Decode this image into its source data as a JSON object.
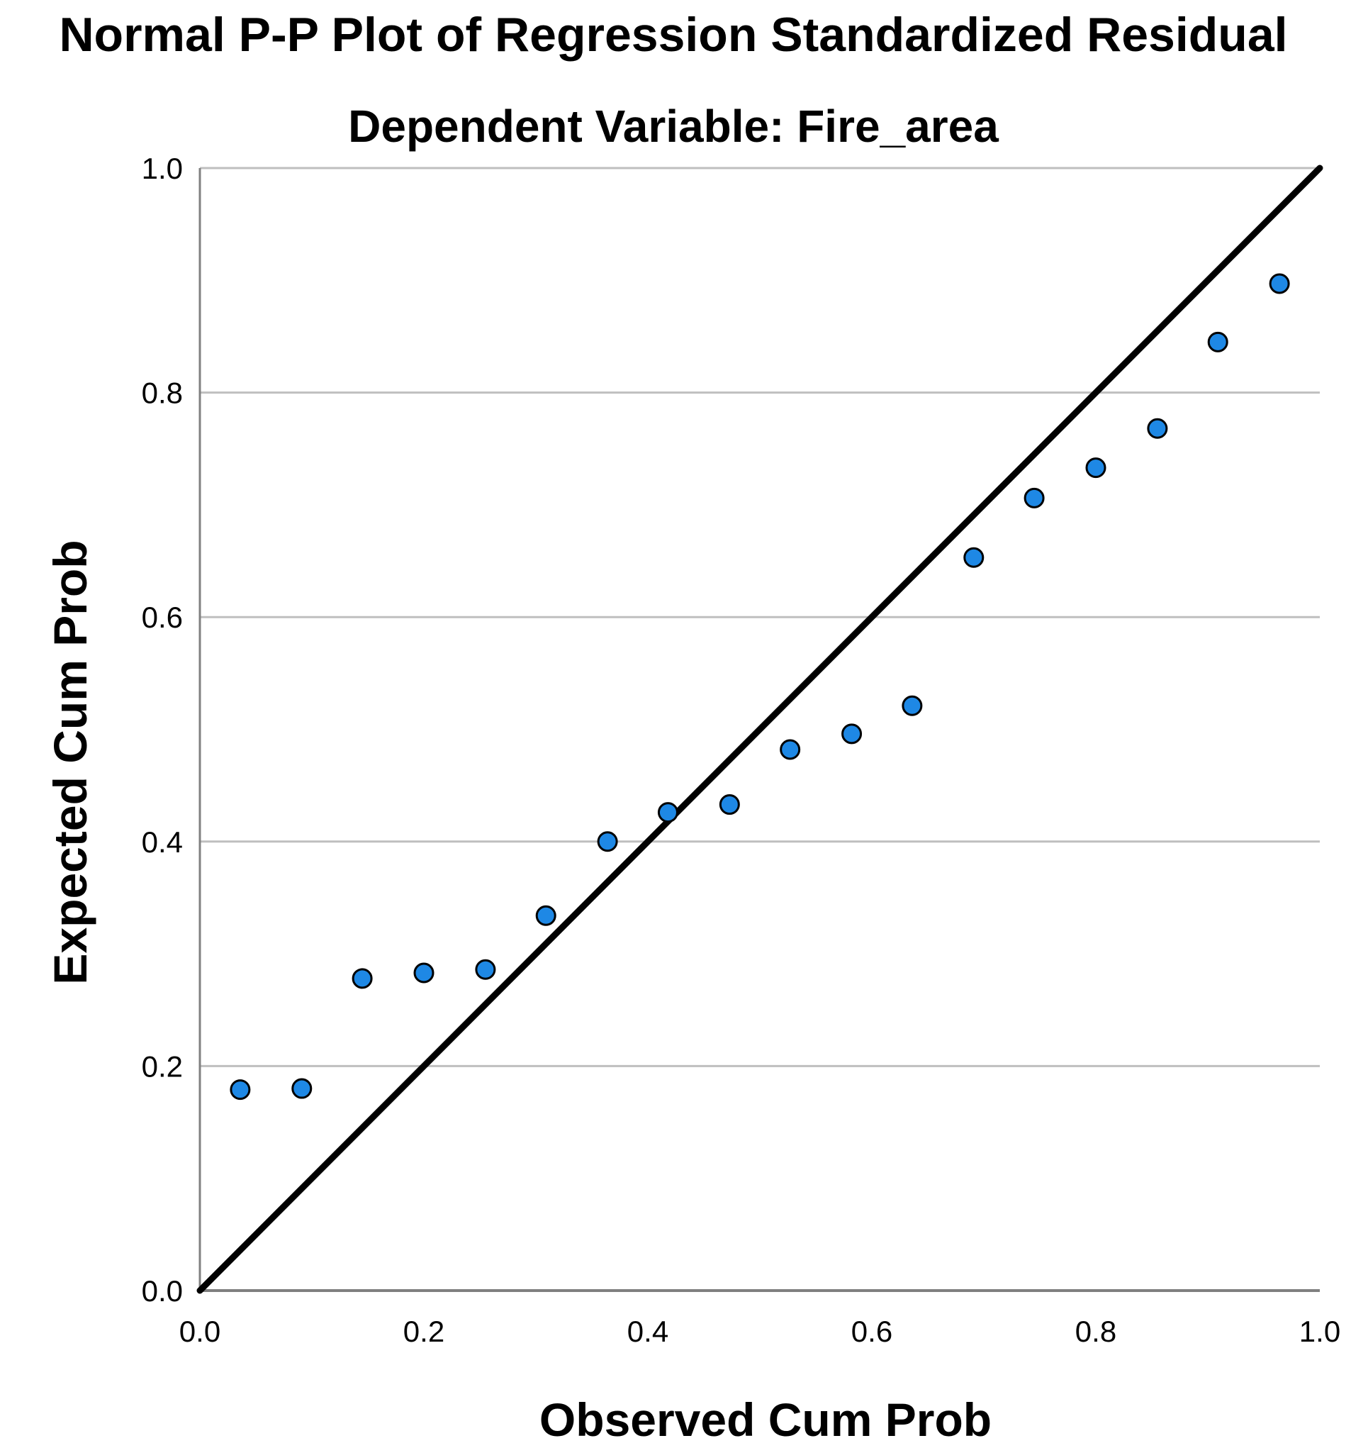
{
  "chart_data": {
    "type": "scatter",
    "title": "Normal P-P Plot of Regression Standardized Residual",
    "subtitle": "Dependent Variable: Fire_area",
    "xlabel": "Observed Cum Prob",
    "ylabel": "Expected Cum Prob",
    "xlim": [
      0.0,
      1.0
    ],
    "ylim": [
      0.0,
      1.0
    ],
    "xticks": [
      "0.0",
      "0.2",
      "0.4",
      "0.6",
      "0.8",
      "1.0"
    ],
    "yticks": [
      "0.0",
      "0.2",
      "0.4",
      "0.6",
      "0.8",
      "1.0"
    ],
    "grid": "horizontal",
    "reference_line": {
      "from": [
        0.0,
        0.0
      ],
      "to": [
        1.0,
        1.0
      ]
    },
    "points": [
      {
        "x": 0.036,
        "y": 0.179
      },
      {
        "x": 0.091,
        "y": 0.18
      },
      {
        "x": 0.145,
        "y": 0.278
      },
      {
        "x": 0.2,
        "y": 0.283
      },
      {
        "x": 0.255,
        "y": 0.286
      },
      {
        "x": 0.309,
        "y": 0.334
      },
      {
        "x": 0.364,
        "y": 0.4
      },
      {
        "x": 0.418,
        "y": 0.426
      },
      {
        "x": 0.473,
        "y": 0.433
      },
      {
        "x": 0.527,
        "y": 0.482
      },
      {
        "x": 0.582,
        "y": 0.496
      },
      {
        "x": 0.636,
        "y": 0.521
      },
      {
        "x": 0.691,
        "y": 0.653
      },
      {
        "x": 0.745,
        "y": 0.706
      },
      {
        "x": 0.8,
        "y": 0.733
      },
      {
        "x": 0.855,
        "y": 0.768
      },
      {
        "x": 0.909,
        "y": 0.845
      },
      {
        "x": 0.964,
        "y": 0.897
      }
    ],
    "colors": {
      "marker_fill": "#1E88E5",
      "marker_stroke": "#000000",
      "gridline": "#BFBFBF",
      "axis": "#808080",
      "reference_line": "#000000"
    }
  }
}
